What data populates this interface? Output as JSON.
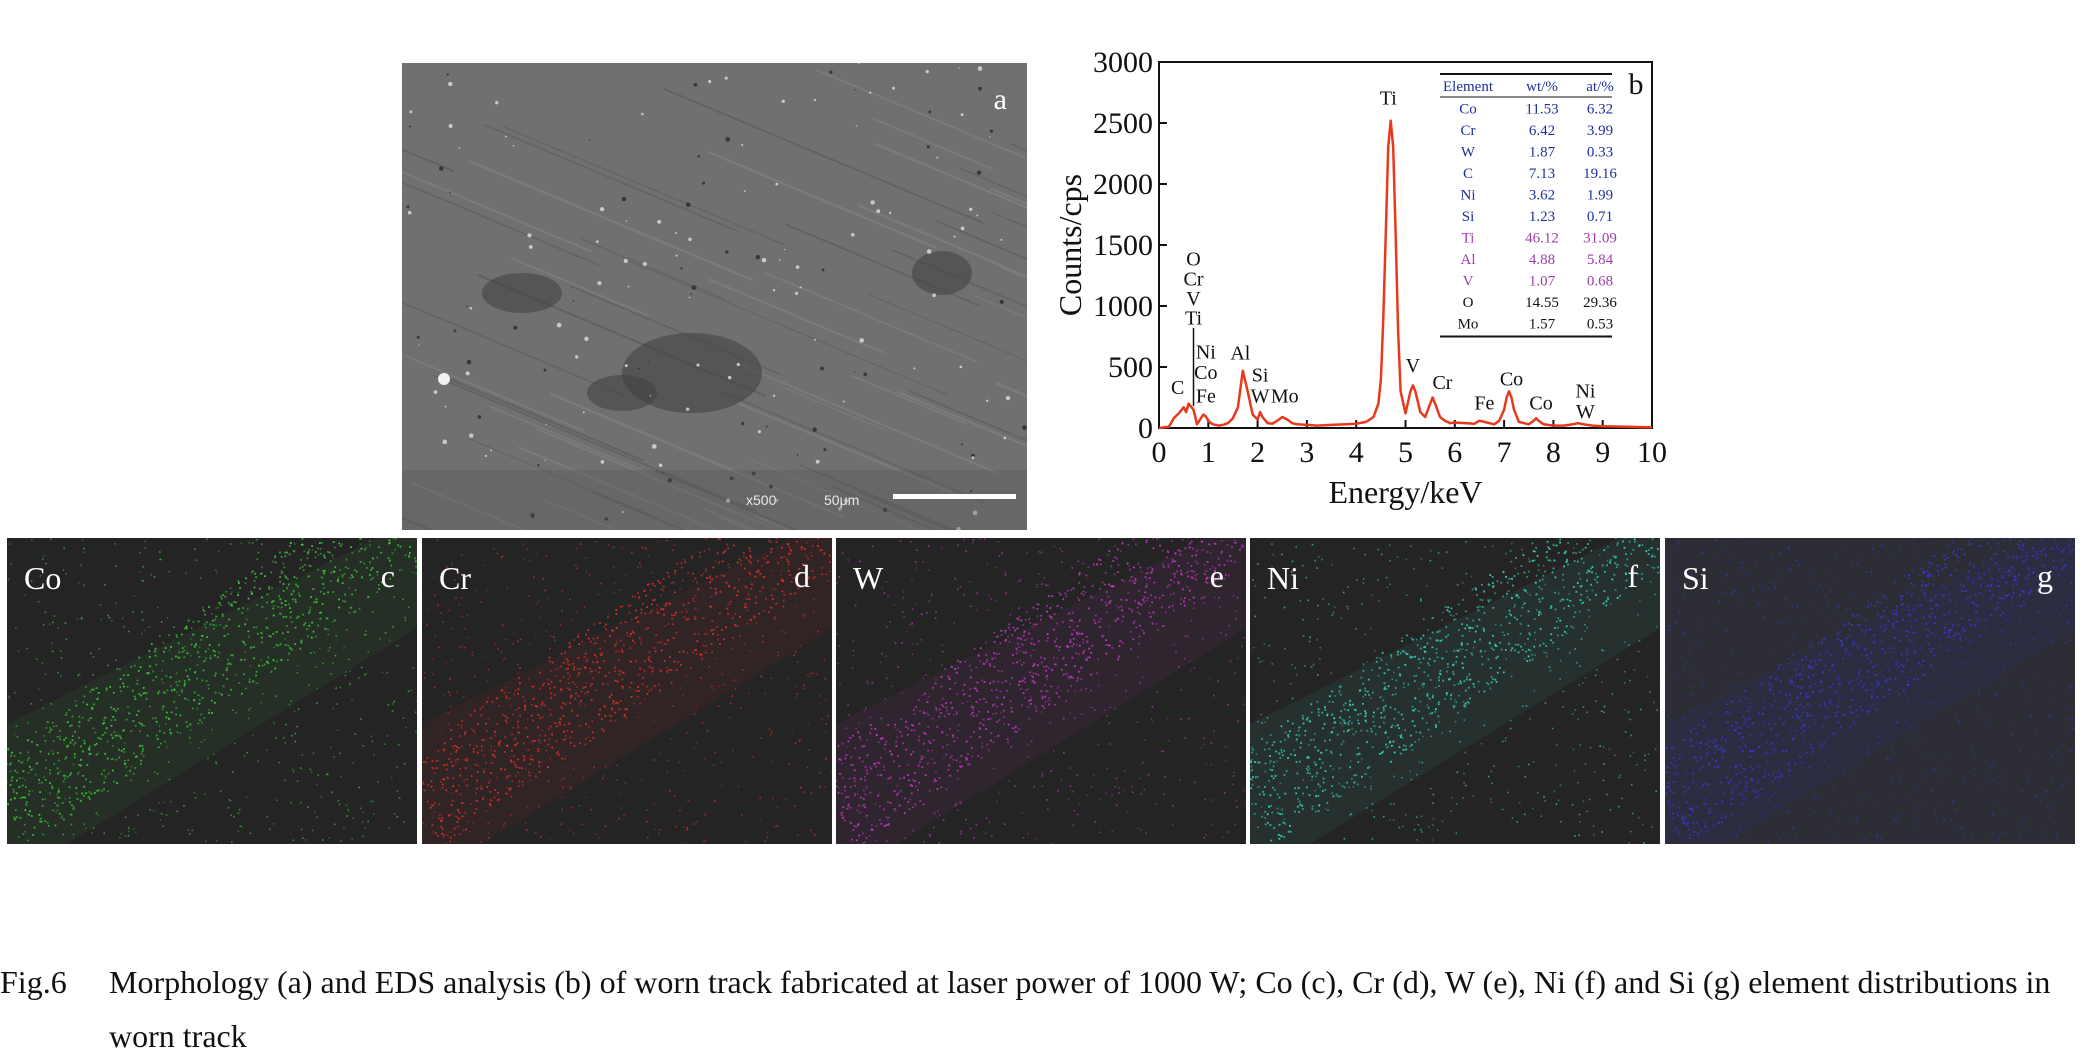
{
  "panel_a": {
    "letter": "a",
    "magnification": "x500",
    "scale_label": "50μm"
  },
  "chart_data": {
    "type": "line",
    "panel_letter": "b",
    "xlabel": "Energy/keV",
    "ylabel": "Counts/cps",
    "xlim": [
      0,
      10
    ],
    "ylim": [
      0,
      3000
    ],
    "x_ticks": [
      0,
      1,
      2,
      3,
      4,
      5,
      6,
      7,
      8,
      9,
      10
    ],
    "y_ticks": [
      0,
      500,
      1000,
      1500,
      2000,
      2500,
      3000
    ],
    "series": [
      {
        "color": "#e8391d",
        "x": [
          0,
          0.2,
          0.3,
          0.4,
          0.5,
          0.55,
          0.6,
          0.7,
          0.77,
          0.85,
          0.9,
          0.95,
          1.0,
          1.05,
          1.1,
          1.2,
          1.3,
          1.4,
          1.5,
          1.6,
          1.7,
          1.8,
          1.9,
          2.0,
          2.05,
          2.1,
          2.2,
          2.3,
          2.4,
          2.5,
          2.6,
          2.7,
          2.8,
          3.0,
          3.2,
          3.5,
          3.8,
          4.0,
          4.2,
          4.35,
          4.45,
          4.5,
          4.55,
          4.6,
          4.65,
          4.7,
          4.75,
          4.8,
          4.85,
          4.9,
          5.0,
          5.1,
          5.15,
          5.2,
          5.3,
          5.4,
          5.5,
          5.55,
          5.6,
          5.7,
          5.8,
          5.9,
          6.0,
          6.2,
          6.4,
          6.5,
          6.6,
          6.8,
          6.9,
          7.0,
          7.05,
          7.1,
          7.15,
          7.2,
          7.3,
          7.5,
          7.6,
          7.65,
          7.7,
          7.8,
          8.0,
          8.2,
          8.4,
          8.5,
          8.6,
          8.8,
          9.0,
          9.5,
          10.0
        ],
        "y": [
          0,
          10,
          80,
          120,
          170,
          130,
          200,
          150,
          30,
          80,
          110,
          95,
          60,
          40,
          30,
          20,
          25,
          40,
          80,
          170,
          470,
          300,
          110,
          70,
          130,
          90,
          40,
          35,
          60,
          90,
          70,
          40,
          30,
          25,
          20,
          25,
          30,
          35,
          50,
          90,
          200,
          400,
          900,
          1600,
          2300,
          2520,
          2300,
          1600,
          800,
          300,
          120,
          300,
          350,
          300,
          130,
          90,
          200,
          250,
          200,
          90,
          60,
          40,
          45,
          40,
          35,
          60,
          50,
          30,
          60,
          150,
          250,
          300,
          250,
          150,
          50,
          30,
          60,
          80,
          60,
          30,
          20,
          20,
          30,
          40,
          30,
          20,
          15,
          10,
          5
        ]
      }
    ],
    "peak_labels": [
      {
        "label": "C",
        "x": 0.38,
        "y": 280
      },
      {
        "label": "O",
        "x": 0.7,
        "y": 1330
      },
      {
        "label": "Cr",
        "x": 0.7,
        "y": 1170
      },
      {
        "label": "V",
        "x": 0.7,
        "y": 1010
      },
      {
        "label": "Ti",
        "x": 0.7,
        "y": 850
      },
      {
        "label": "Ni",
        "x": 0.95,
        "y": 570
      },
      {
        "label": "Co",
        "x": 0.95,
        "y": 400
      },
      {
        "label": "Fe",
        "x": 0.95,
        "y": 210
      },
      {
        "label": "Al",
        "x": 1.65,
        "y": 560
      },
      {
        "label": "Si",
        "x": 2.05,
        "y": 380
      },
      {
        "label": "W",
        "x": 2.05,
        "y": 210
      },
      {
        "label": "Mo",
        "x": 2.55,
        "y": 210
      },
      {
        "label": "Ti",
        "x": 4.65,
        "y": 2650
      },
      {
        "label": "V",
        "x": 5.15,
        "y": 460
      },
      {
        "label": "Cr",
        "x": 5.75,
        "y": 320
      },
      {
        "label": "Fe",
        "x": 6.6,
        "y": 150
      },
      {
        "label": "Co",
        "x": 7.15,
        "y": 350
      },
      {
        "label": "Co",
        "x": 7.75,
        "y": 150
      },
      {
        "label": "Ni",
        "x": 8.65,
        "y": 250
      },
      {
        "label": "W",
        "x": 8.65,
        "y": 80
      }
    ],
    "inset_table": {
      "headers": [
        "Element",
        "wt/%",
        "at/%"
      ],
      "rows": [
        {
          "element": "Co",
          "wt": "11.53",
          "at": "6.32",
          "color": "#1f2f9c"
        },
        {
          "element": "Cr",
          "wt": "6.42",
          "at": "3.99",
          "color": "#1f2f9c"
        },
        {
          "element": "W",
          "wt": "1.87",
          "at": "0.33",
          "color": "#1f2f9c"
        },
        {
          "element": "C",
          "wt": "7.13",
          "at": "19.16",
          "color": "#1f2f9c"
        },
        {
          "element": "Ni",
          "wt": "3.62",
          "at": "1.99",
          "color": "#1f2f9c"
        },
        {
          "element": "Si",
          "wt": "1.23",
          "at": "0.71",
          "color": "#1f2f9c"
        },
        {
          "element": "Ti",
          "wt": "46.12",
          "at": "31.09",
          "color": "#9b3fa6"
        },
        {
          "element": "Al",
          "wt": "4.88",
          "at": "5.84",
          "color": "#9b3fa6"
        },
        {
          "element": "V",
          "wt": "1.07",
          "at": "0.68",
          "color": "#9b3fa6"
        },
        {
          "element": "O",
          "wt": "14.55",
          "at": "29.36",
          "color": "#111111"
        },
        {
          "element": "Mo",
          "wt": "1.57",
          "at": "0.53",
          "color": "#111111"
        }
      ]
    }
  },
  "maps": [
    {
      "element": "Co",
      "letter": "c",
      "dot_color": "#3ecb3a"
    },
    {
      "element": "Cr",
      "letter": "d",
      "dot_color": "#e0312b"
    },
    {
      "element": "W",
      "letter": "e",
      "dot_color": "#c838c8"
    },
    {
      "element": "Ni",
      "letter": "f",
      "dot_color": "#38d6c0"
    },
    {
      "element": "Si",
      "letter": "g",
      "dot_color": "#3838e0"
    }
  ],
  "caption": {
    "label": "Fig.6",
    "text": "Morphology (a) and EDS analysis (b) of worn track fabricated at laser power of 1000 W; Co (c), Cr (d), W (e), Ni (f) and Si (g) element distributions in worn track"
  }
}
